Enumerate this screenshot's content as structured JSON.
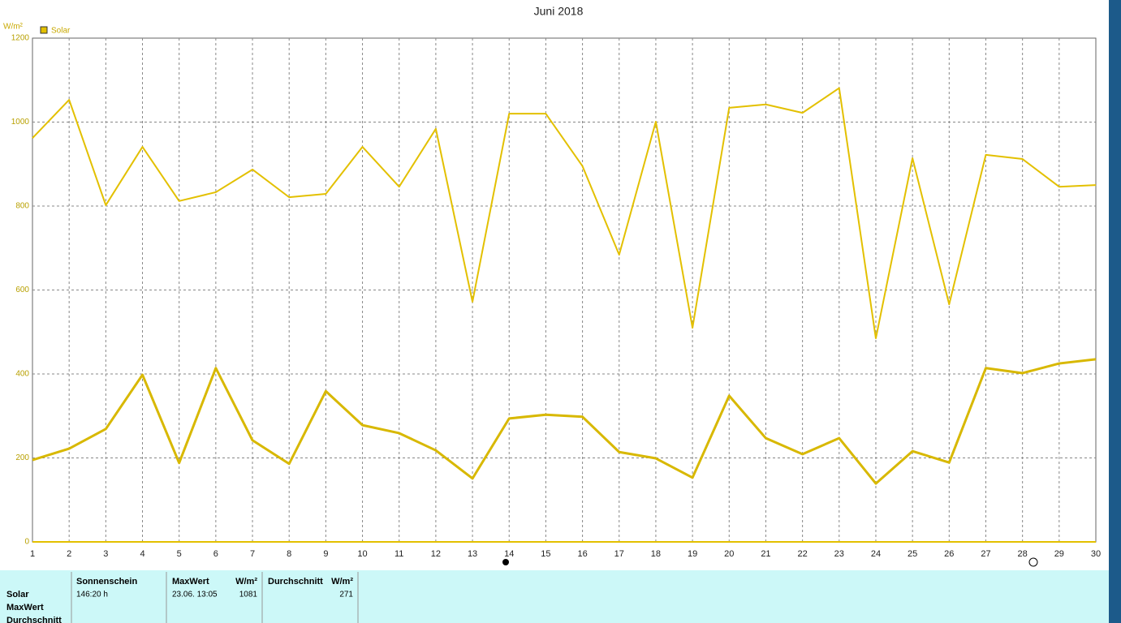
{
  "chart_data": {
    "type": "line",
    "title": "Juni 2018",
    "y_label": "W/m²",
    "x": [
      1,
      2,
      3,
      4,
      5,
      6,
      7,
      8,
      9,
      10,
      11,
      12,
      13,
      14,
      15,
      16,
      17,
      18,
      19,
      20,
      21,
      22,
      23,
      24,
      25,
      26,
      27,
      28,
      29,
      30
    ],
    "xlim": [
      1,
      30
    ],
    "xticks": [
      1,
      2,
      3,
      4,
      5,
      6,
      7,
      8,
      9,
      10,
      11,
      12,
      13,
      14,
      15,
      16,
      17,
      18,
      19,
      20,
      21,
      22,
      23,
      24,
      25,
      26,
      27,
      28,
      29,
      30
    ],
    "ylim": [
      0,
      1200
    ],
    "yticks": [
      0,
      200,
      400,
      600,
      800,
      1000,
      1200
    ],
    "grid": true,
    "series": [
      {
        "name": "Solar",
        "color": "#e3c000",
        "values": [
          962,
          1053,
          802,
          941,
          812,
          833,
          887,
          821,
          829,
          941,
          846,
          984,
          572,
          1020,
          1020,
          895,
          684,
          1001,
          510,
          1034,
          1042,
          1022,
          1081,
          485,
          914,
          566,
          922,
          912,
          846,
          850
        ]
      },
      {
        "color": "#d8b800",
        "values": [
          195,
          222,
          269,
          398,
          188,
          414,
          242,
          186,
          359,
          278,
          259,
          218,
          151,
          294,
          303,
          298,
          214,
          199,
          153,
          348,
          247,
          209,
          247,
          139,
          216,
          189,
          414,
          402,
          425,
          435
        ]
      }
    ]
  },
  "table": {
    "row_labels": [
      "Solar",
      "MaxWert",
      "Durchschnitt"
    ],
    "sunshine": {
      "header": "Sonnenschein",
      "value": "146:20 h"
    },
    "max": {
      "header": "MaxWert",
      "unit": "W/m²",
      "time": "23.06.  13:05",
      "value": "1081"
    },
    "avg": {
      "header": "Durchschnitt",
      "unit": "W/m²",
      "value": "271"
    }
  }
}
